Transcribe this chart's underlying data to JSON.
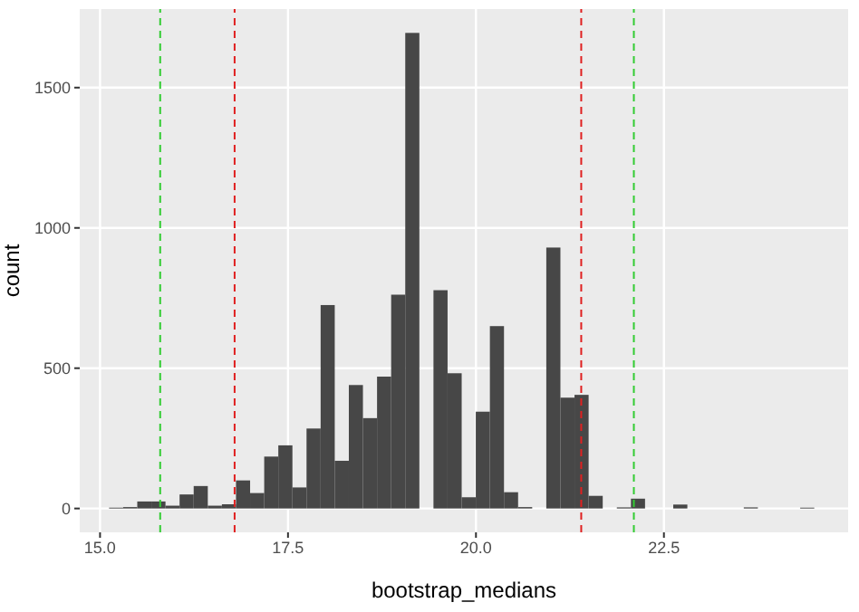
{
  "chart_data": {
    "type": "histogram",
    "xlabel": "bootstrap_medians",
    "ylabel": "count",
    "color": "#474747",
    "bins": [
      15.12,
      15.3076,
      15.4952,
      15.6828,
      15.8704,
      16.058,
      16.2456,
      16.4332,
      16.6208,
      16.8084,
      16.996,
      17.1836,
      17.3712,
      17.5588,
      17.7464,
      17.934,
      18.1216,
      18.3092,
      18.4968,
      18.6844,
      18.872,
      19.0596,
      19.2472,
      19.4348,
      19.6224,
      19.81,
      19.9976,
      20.1852,
      20.3728,
      20.5604,
      20.748,
      20.9356,
      21.1232,
      21.3108,
      21.4984,
      21.686,
      21.8736,
      22.0612,
      22.2488,
      22.4364,
      22.624,
      22.8116,
      22.9992,
      23.1868,
      23.3744,
      23.562,
      23.7496,
      23.9372,
      24.1248,
      24.3124,
      24.5
    ],
    "values": [
      3,
      5,
      25,
      25,
      10,
      50,
      80,
      10,
      15,
      100,
      55,
      185,
      225,
      75,
      285,
      725,
      170,
      440,
      322,
      470,
      762,
      1695,
      0,
      778,
      482,
      40,
      345,
      650,
      58,
      5,
      0,
      930,
      395,
      405,
      45,
      0,
      4,
      35,
      0,
      0,
      14,
      0,
      0,
      0,
      0,
      4,
      0,
      0,
      0,
      3
    ],
    "xlim": [
      14.73,
      24.95
    ],
    "xticks": [
      {
        "value": 15,
        "label": "15.0"
      },
      17.5,
      {
        "value": 20,
        "label": "20.0"
      },
      22.5
    ],
    "ylim": [
      -85,
      1780
    ],
    "yticks": [
      0,
      500,
      1000,
      1500
    ],
    "grid": true,
    "ref_lines": [
      {
        "axis": "x",
        "value": 15.8,
        "color": "#33cc33",
        "line_style": "dashed"
      },
      {
        "axis": "x",
        "value": 16.79,
        "color": "#e02020",
        "line_style": "dashed"
      },
      {
        "axis": "x",
        "value": 21.4,
        "color": "#e02020",
        "line_style": "dashed"
      },
      {
        "axis": "x",
        "value": 22.1,
        "color": "#33cc33",
        "line_style": "dashed"
      }
    ]
  }
}
